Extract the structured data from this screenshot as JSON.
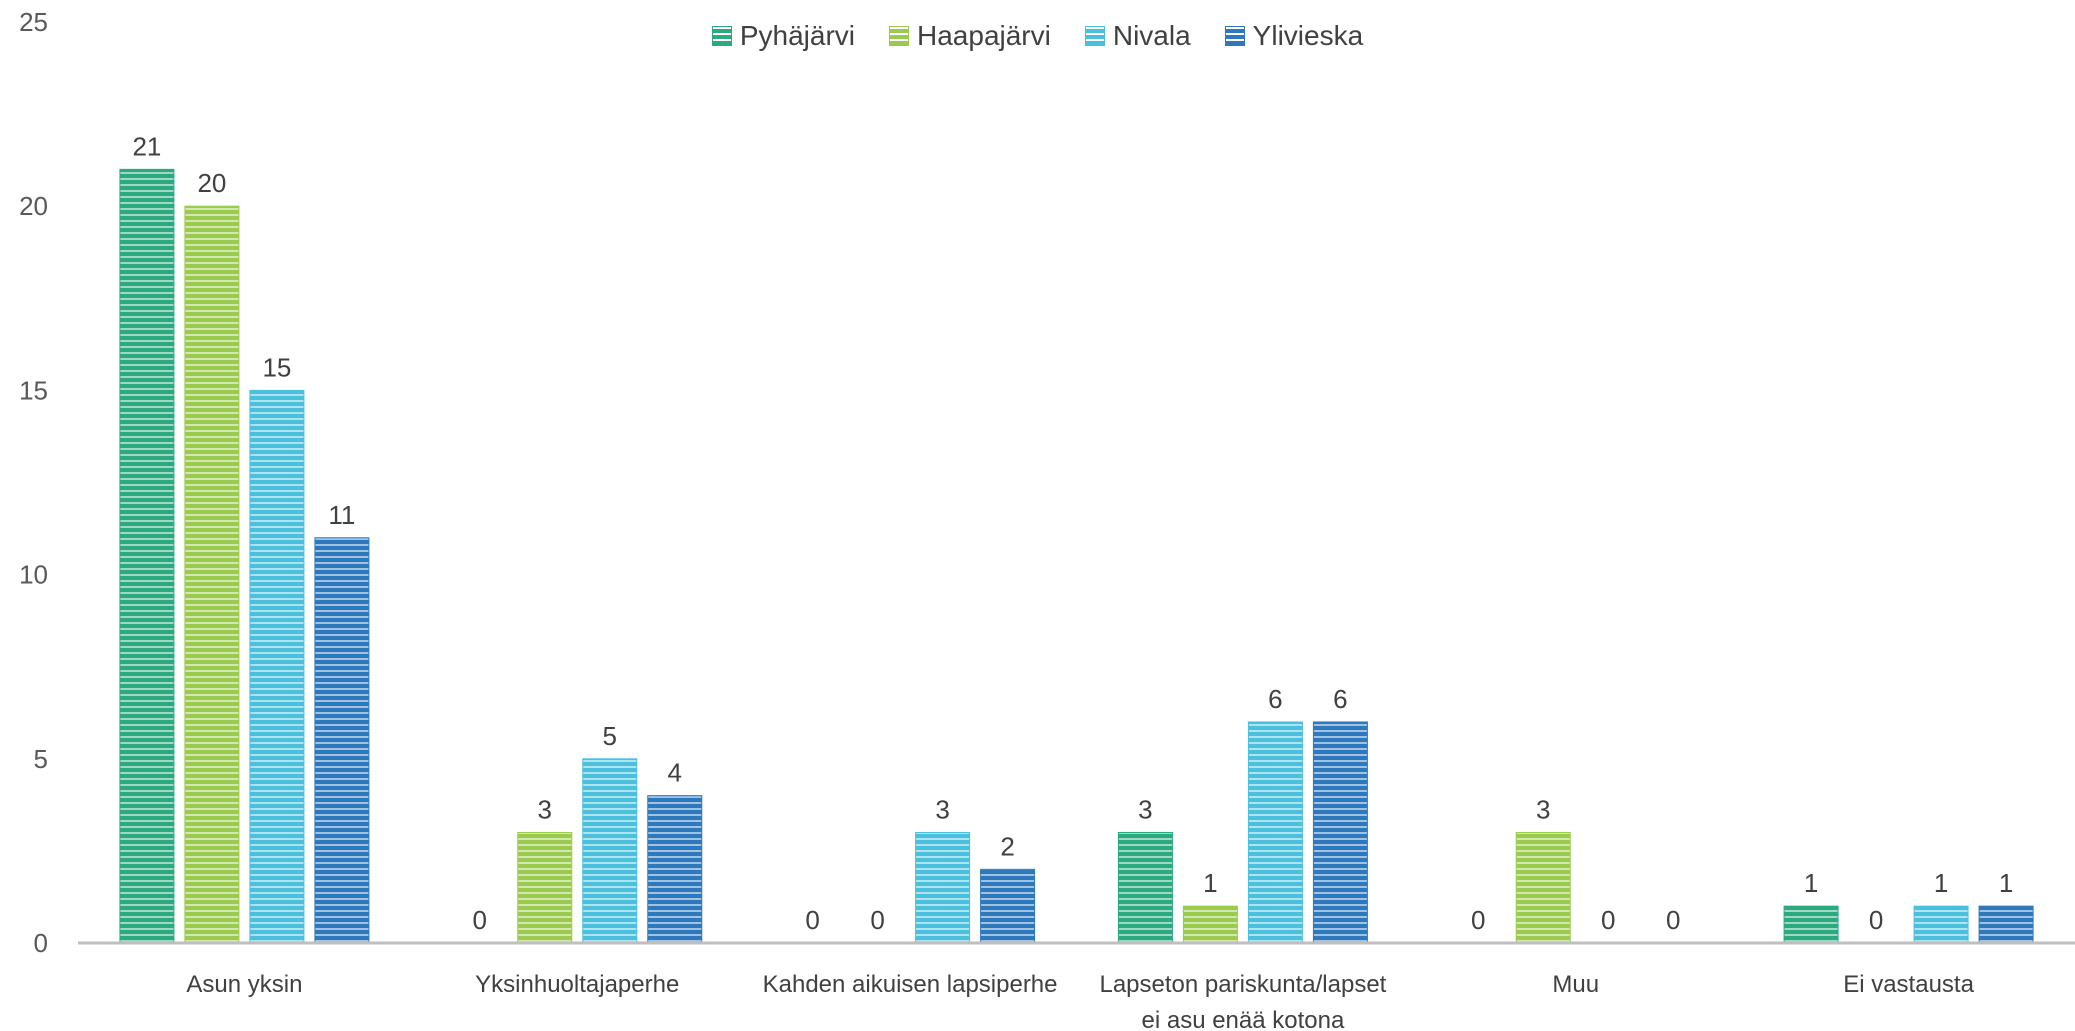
{
  "chart_data": {
    "type": "bar",
    "title": "",
    "xlabel": "",
    "ylabel": "",
    "ylim": [
      0,
      25
    ],
    "yticks": [
      0,
      5,
      10,
      15,
      20,
      25
    ],
    "grid": false,
    "legend_position": "top-center",
    "categories": [
      [
        "Asun yksin"
      ],
      [
        "Yksinhuoltajaperhe"
      ],
      [
        "Kahden aikuisen lapsiperhe"
      ],
      [
        "Lapseton pariskunta/lapset",
        "ei asu enää kotona"
      ],
      [
        "Muu"
      ],
      [
        "Ei vastausta"
      ]
    ],
    "series": [
      {
        "name": "Pyhäjärvi",
        "color": "#2BAA7F",
        "values": [
          21,
          0,
          0,
          3,
          0,
          1
        ]
      },
      {
        "name": "Haapajärvi",
        "color": "#9BCB4E",
        "values": [
          20,
          3,
          0,
          1,
          3,
          0
        ]
      },
      {
        "name": "Nivala",
        "color": "#4BC0DE",
        "values": [
          15,
          5,
          3,
          6,
          0,
          1
        ]
      },
      {
        "name": "Ylivieska",
        "color": "#2E79BD",
        "values": [
          11,
          4,
          2,
          6,
          0,
          1
        ]
      }
    ]
  }
}
